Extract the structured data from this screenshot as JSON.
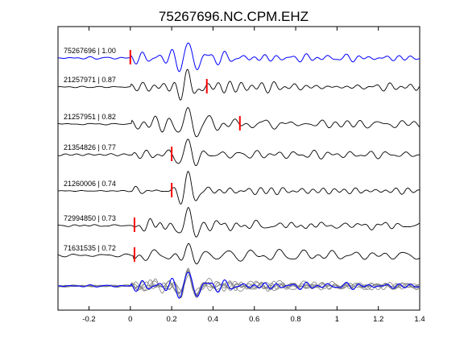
{
  "chart_data": {
    "type": "line",
    "title": "75267696.NC.CPM.EHZ",
    "xlabel": "",
    "ylabel": "",
    "xlim": [
      -0.35,
      1.4
    ],
    "xticks": [
      -0.2,
      0,
      0.2,
      0.4,
      0.6,
      0.8,
      1,
      1.2,
      1.4
    ],
    "xtick_labels": [
      "-0.2",
      "0",
      "0.2",
      "0.4",
      "0.6",
      "0.8",
      "1",
      "1.2",
      "1.4"
    ],
    "grid": false,
    "legend": "none",
    "traces": [
      {
        "label": "75267696 | 1.00",
        "event_id": "75267696",
        "correlation": 1.0,
        "pick_time": 0.0,
        "reference": true
      },
      {
        "label": "21257971 | 0.87",
        "event_id": "21257971",
        "correlation": 0.87,
        "pick_time": 0.37
      },
      {
        "label": "21257951 | 0.82",
        "event_id": "21257951",
        "correlation": 0.82,
        "pick_time": 0.53
      },
      {
        "label": "21354826 | 0.77",
        "event_id": "21354826",
        "correlation": 0.77,
        "pick_time": 0.2
      },
      {
        "label": "21260006 | 0.74",
        "event_id": "21260006",
        "correlation": 0.74,
        "pick_time": 0.2
      },
      {
        "label": "72994850 | 0.73",
        "event_id": "72994850",
        "correlation": 0.73,
        "pick_time": 0.02
      },
      {
        "label": "71631535 | 0.72",
        "event_id": "71631535",
        "correlation": 0.72,
        "pick_time": 0.02
      }
    ],
    "stack": {
      "description_visible": false
    }
  },
  "colors": {
    "reference_trace": "#0000ff",
    "other_traces": "#000000",
    "stack_traces": "#808080",
    "pick_marker": "#ff0000",
    "axes": "#000000",
    "background": "#ffffff"
  }
}
